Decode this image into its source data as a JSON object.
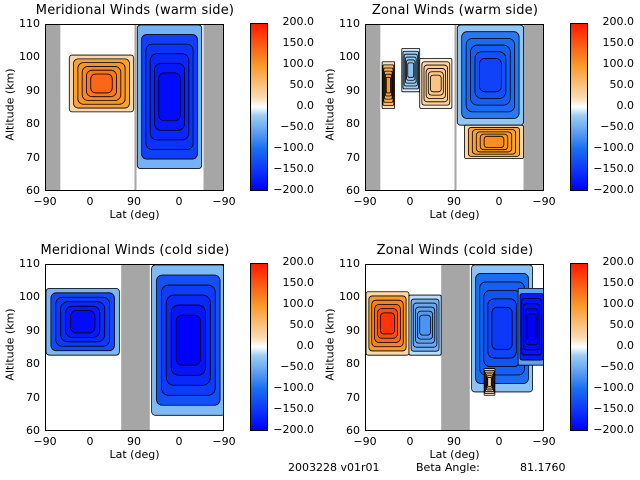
{
  "chart_data": [
    {
      "type": "heatmap",
      "title": "Meridional Winds (warm side)",
      "xlabel": "Lat (deg)",
      "ylabel": "Altitude (km)",
      "xticks": [
        "-90",
        "0",
        "90",
        "0",
        "-90"
      ],
      "yticks": [
        "110",
        "100",
        "90",
        "80",
        "70",
        "60"
      ],
      "ylim": [
        60,
        110
      ],
      "colorbar": {
        "ticks": [
          "200.0",
          "150.0",
          "100.0",
          "50.0",
          "0.0",
          "-50.0",
          "-100.0",
          "-150.0",
          "-200.0"
        ],
        "range": [
          -200,
          200
        ]
      },
      "blobs": [
        {
          "x0": 0.13,
          "x1": 0.49,
          "y0": 84,
          "y1": 101,
          "value": 80,
          "peak": 140
        },
        {
          "x0": 0.51,
          "x1": 0.87,
          "y0": 67,
          "y1": 110,
          "value": -130,
          "peak": -190
        }
      ],
      "gray_bands": [
        [
          0.0,
          0.08
        ],
        [
          0.88,
          1.0
        ]
      ]
    },
    {
      "type": "heatmap",
      "title": "Zonal Winds (warm side)",
      "xlabel": "Lat (deg)",
      "ylabel": "Altitude (km)",
      "xticks": [
        "-90",
        "0",
        "90",
        "0",
        "-90"
      ],
      "yticks": [
        "110",
        "100",
        "90",
        "80",
        "70",
        "60"
      ],
      "ylim": [
        60,
        110
      ],
      "colorbar": {
        "ticks": [
          "200.0",
          "150.0",
          "100.0",
          "50.0",
          "0.0",
          "-50.0",
          "-100.0",
          "-150.0",
          "-200.0"
        ],
        "range": [
          -200,
          200
        ]
      },
      "blobs": [
        {
          "x0": 0.09,
          "x1": 0.16,
          "y0": 85,
          "y1": 99,
          "value": 60,
          "peak": 100
        },
        {
          "x0": 0.2,
          "x1": 0.3,
          "y0": 90,
          "y1": 103,
          "value": -20,
          "peak": -30
        },
        {
          "x0": 0.3,
          "x1": 0.48,
          "y0": 85,
          "y1": 100,
          "value": 30,
          "peak": 50
        },
        {
          "x0": 0.51,
          "x1": 0.88,
          "y0": 80,
          "y1": 110,
          "value": -80,
          "peak": -140
        },
        {
          "x0": 0.55,
          "x1": 0.88,
          "y0": 70,
          "y1": 80,
          "value": 80,
          "peak": 110
        }
      ],
      "gray_bands": [
        [
          0.0,
          0.08
        ],
        [
          0.88,
          1.0
        ]
      ]
    },
    {
      "type": "heatmap",
      "title": "Meridional Winds (cold side)",
      "xlabel": "Lat (deg)",
      "ylabel": "Altitude (km)",
      "xticks": [
        "-90",
        "0",
        "90",
        "0",
        "-90"
      ],
      "yticks": [
        "110",
        "100",
        "90",
        "80",
        "70",
        "60"
      ],
      "ylim": [
        60,
        110
      ],
      "colorbar": {
        "ticks": [
          "200.0",
          "150.0",
          "100.0",
          "50.0",
          "0.0",
          "-50.0",
          "-100.0",
          "-150.0",
          "-200.0"
        ],
        "range": [
          -200,
          200
        ]
      },
      "blobs": [
        {
          "x0": 0.0,
          "x1": 0.41,
          "y0": 83,
          "y1": 103,
          "value": -120,
          "peak": -190
        },
        {
          "x0": 0.59,
          "x1": 1.0,
          "y0": 65,
          "y1": 110,
          "value": -110,
          "peak": -200
        }
      ],
      "gray_bands": [
        [
          0.42,
          0.58
        ]
      ]
    },
    {
      "type": "heatmap",
      "title": "Zonal Winds (cold side)",
      "xlabel": "Lat (deg)",
      "ylabel": "Altitude (km)",
      "xticks": [
        "-90",
        "0",
        "90",
        "0",
        "-90"
      ],
      "yticks": [
        "110",
        "100",
        "90",
        "80",
        "70",
        "60"
      ],
      "ylim": [
        60,
        110
      ],
      "colorbar": {
        "ticks": [
          "200.0",
          "150.0",
          "100.0",
          "50.0",
          "0.0",
          "-50.0",
          "-100.0",
          "-150.0",
          "-200.0"
        ],
        "range": [
          -200,
          200
        ]
      },
      "blobs": [
        {
          "x0": 0.0,
          "x1": 0.24,
          "y0": 83,
          "y1": 102,
          "value": 80,
          "peak": 180
        },
        {
          "x0": 0.24,
          "x1": 0.42,
          "y0": 83,
          "y1": 101,
          "value": -40,
          "peak": -70
        },
        {
          "x0": 0.59,
          "x1": 0.93,
          "y0": 72,
          "y1": 110,
          "value": -90,
          "peak": -150
        },
        {
          "x0": 0.85,
          "x1": 1.0,
          "y0": 80,
          "y1": 103,
          "value": -170,
          "peak": -200
        },
        {
          "x0": 0.66,
          "x1": 0.72,
          "y0": 71,
          "y1": 79,
          "value": 30,
          "peak": 40
        }
      ],
      "gray_bands": [
        [
          0.42,
          0.58
        ]
      ]
    }
  ],
  "footer": {
    "date_version": "2003228 v01r01",
    "beta_label": "Beta Angle:",
    "beta_value": "81.1760"
  }
}
